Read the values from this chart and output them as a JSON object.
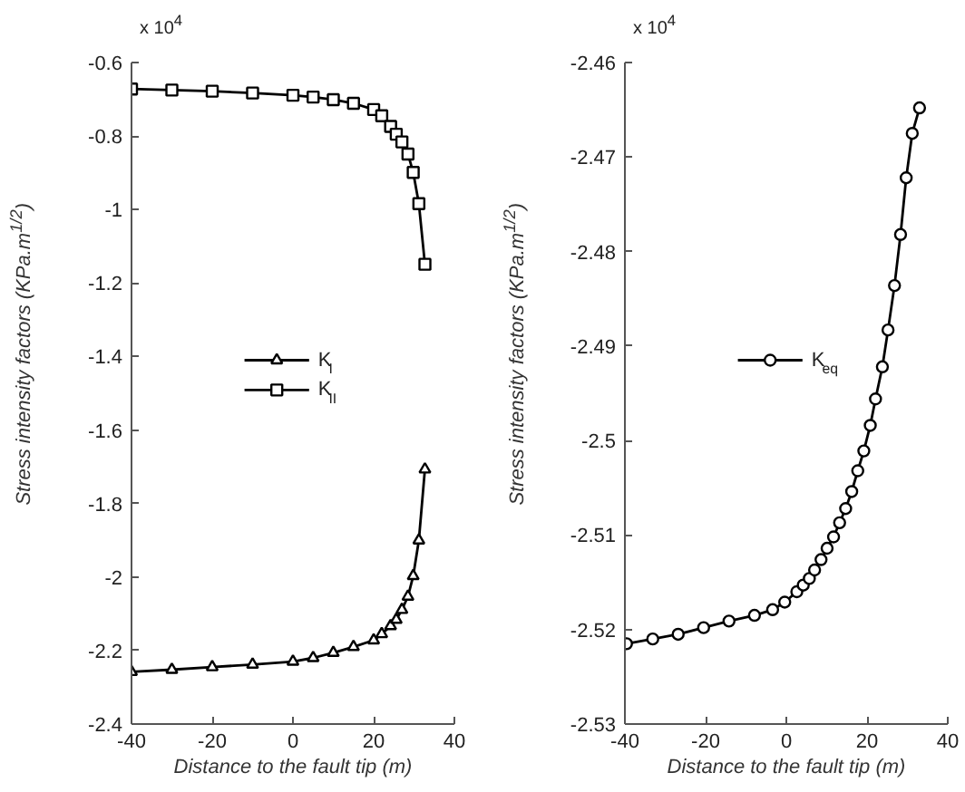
{
  "chart_data": [
    {
      "type": "line",
      "xlabel": "Distance to the fault tip (m)",
      "ylabel": "Stress intensity factors  (KPa.m$^{1/2}$)",
      "annotations": [
        "x 10$^{4}$"
      ],
      "xlim": [
        -40,
        40
      ],
      "ylim": [
        -2.4,
        -0.6
      ],
      "xticks": [
        -40,
        -20,
        0,
        20,
        40
      ],
      "yticks": [
        -2.4,
        -2.2,
        -2,
        -1.8,
        -1.6,
        -1.4,
        -1.2,
        -1,
        -0.8,
        -0.6
      ],
      "grid": false,
      "legend": "center",
      "series": [
        {
          "name": "K$_{I}$",
          "color": "#000000",
          "marker": "triangle",
          "x": [
            -40,
            -30,
            -20,
            -10,
            0,
            5,
            10,
            15,
            20,
            22,
            24.2,
            25.6,
            27.0,
            28.5,
            29.8,
            31.2,
            32.7
          ],
          "values": [
            -2.258,
            -2.252,
            -2.245,
            -2.238,
            -2.23,
            -2.22,
            -2.206,
            -2.19,
            -2.172,
            -2.155,
            -2.133,
            -2.116,
            -2.089,
            -2.053,
            -1.997,
            -1.9,
            -1.707
          ]
        },
        {
          "name": "K$_{II}$",
          "color": "#000000",
          "marker": "square",
          "x": [
            -40,
            -30,
            -20,
            -10,
            0,
            5,
            10,
            15,
            20,
            22,
            24.2,
            25.6,
            27.0,
            28.5,
            29.8,
            31.2,
            32.7
          ],
          "values": [
            -0.672,
            -0.675,
            -0.678,
            -0.683,
            -0.689,
            -0.694,
            -0.701,
            -0.711,
            -0.728,
            -0.745,
            -0.774,
            -0.795,
            -0.816,
            -0.849,
            -0.899,
            -0.984,
            -1.149
          ]
        }
      ]
    },
    {
      "type": "line",
      "xlabel": "Distance to the fault tip (m)",
      "ylabel": "Stress intensity factors  (KPa.m$^{1/2}$)",
      "annotations": [
        "x 10$^{4}$"
      ],
      "xlim": [
        -40,
        40
      ],
      "ylim": [
        -2.53,
        -2.46
      ],
      "xticks": [
        -40,
        -20,
        0,
        20,
        40
      ],
      "yticks": [
        -2.53,
        -2.52,
        -2.51,
        -2.5,
        -2.49,
        -2.48,
        -2.47,
        -2.46
      ],
      "grid": false,
      "legend": "center",
      "series": [
        {
          "name": "K$_{eq}$",
          "color": "#000000",
          "marker": "circle",
          "x": [
            -39.6,
            -33.1,
            -26.8,
            -20.5,
            -14.2,
            -7.9,
            -3.4,
            -0.4,
            2.6,
            4.2,
            5.7,
            7.0,
            8.6,
            10.1,
            11.7,
            13.2,
            14.7,
            16.2,
            17.7,
            19.2,
            20.8,
            22.1,
            23.8,
            25.2,
            26.8,
            28.3,
            29.7,
            31.2,
            33.0
          ],
          "values": [
            -2.5215,
            -2.521,
            -2.5205,
            -2.5198,
            -2.5191,
            -2.5185,
            -2.5179,
            -2.5171,
            -2.516,
            -2.5153,
            -2.5146,
            -2.5137,
            -2.5126,
            -2.5114,
            -2.5102,
            -2.5087,
            -2.5072,
            -2.5054,
            -2.5032,
            -2.5011,
            -2.4984,
            -2.4956,
            -2.4922,
            -2.4883,
            -2.4836,
            -2.4782,
            -2.4722,
            -2.4675,
            -2.4648
          ]
        }
      ]
    }
  ]
}
